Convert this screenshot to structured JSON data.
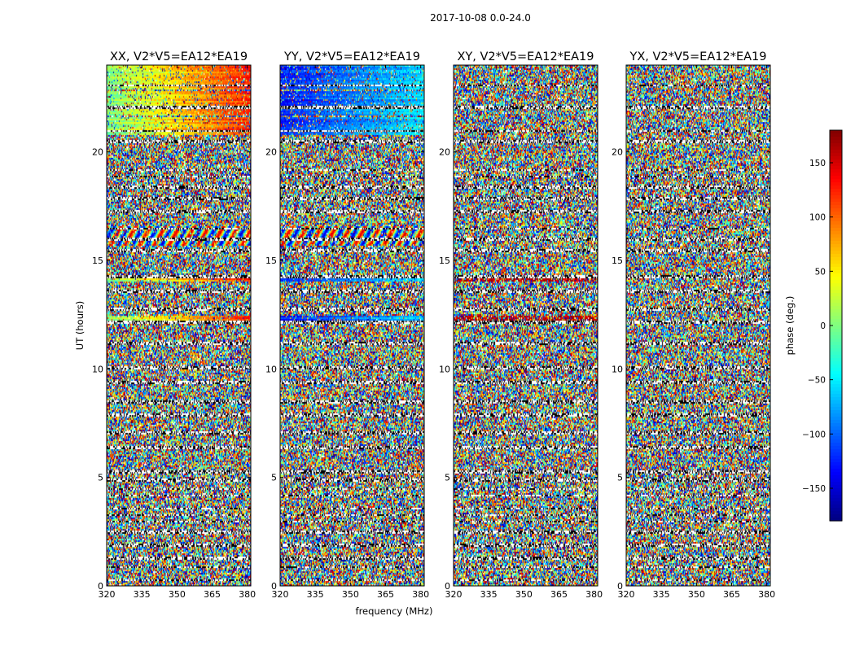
{
  "chart_data": {
    "type": "heatmap",
    "suptitle": "2017-10-08 0.0-24.0",
    "xlabel": "frequency (MHz)",
    "ylabel": "UT (hours)",
    "xlim": [
      320,
      381.5
    ],
    "ylim": [
      0,
      24
    ],
    "xticks": [
      "320",
      "335",
      "350",
      "365",
      "380"
    ],
    "yticks": [
      "0",
      "5",
      "10",
      "15",
      "20"
    ],
    "panels": [
      {
        "title": "XX, V2*V5=EA12*EA19",
        "variant": 0
      },
      {
        "title": "YY, V2*V5=EA12*EA19",
        "variant": 1
      },
      {
        "title": "XY, V2*V5=EA12*EA19",
        "variant": 2
      },
      {
        "title": "YX, V2*V5=EA12*EA19",
        "variant": 3
      }
    ],
    "colorbar": {
      "label": "phase (deg.)",
      "vmin": -180,
      "vmax": 180,
      "ticks": [
        "150",
        "100",
        "50",
        "0",
        "−50",
        "−100",
        "−150"
      ],
      "tick_values": [
        150,
        100,
        50,
        0,
        -50,
        -100,
        -150
      ],
      "colormap": "jet"
    },
    "gap_rows_ut": [
      0.3,
      0.9,
      1.3,
      1.9,
      2.5,
      3.0,
      3.3,
      3.6,
      4.2,
      4.5,
      4.9,
      5.3,
      6.4,
      7.1,
      7.9,
      8.5,
      9.4,
      10.1,
      11.2,
      12.2,
      12.8,
      13.6,
      14.3,
      15.5,
      16.0,
      16.5,
      17.3,
      17.9,
      18.4,
      18.9,
      19.2,
      20.5,
      21.0,
      22.1,
      23.1
    ],
    "coherent_rows_ut": [
      [
        12.15,
        12.45
      ],
      [
        14.05,
        14.35
      ],
      [
        15.7,
        16.6
      ],
      [
        20.8,
        21.6
      ],
      [
        21.7,
        22.8
      ],
      [
        22.9,
        24.0
      ]
    ]
  }
}
